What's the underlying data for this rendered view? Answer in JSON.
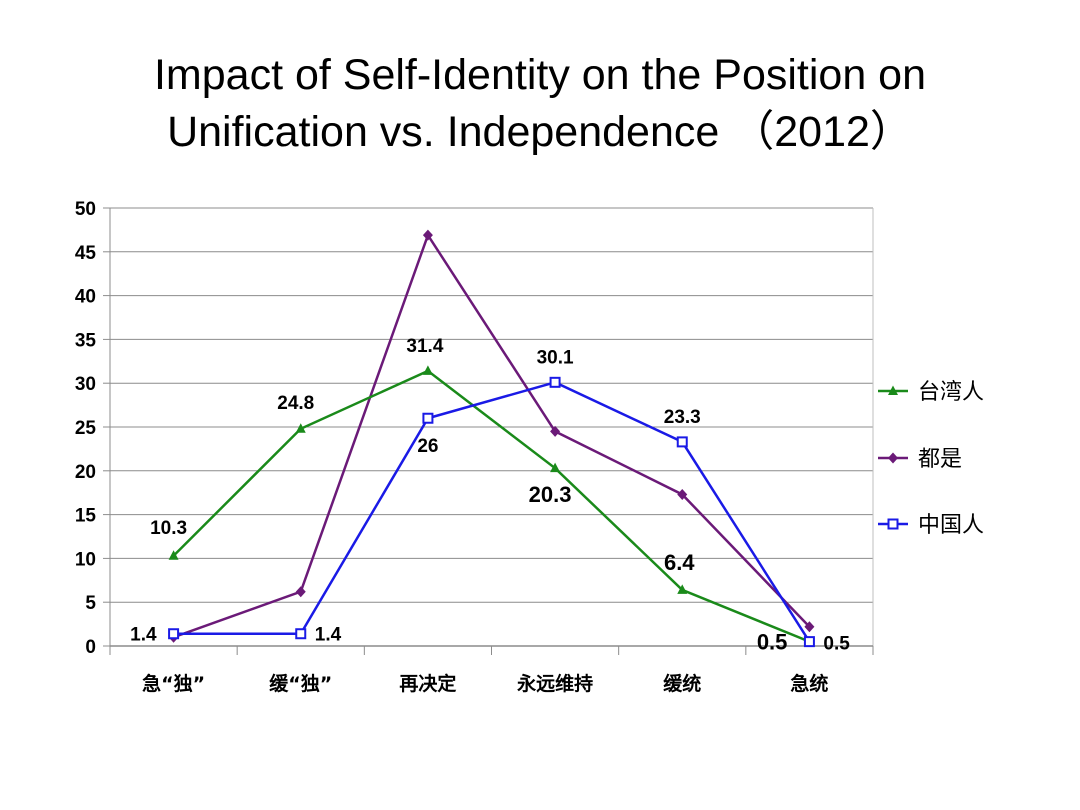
{
  "title_line1": "Impact of Self-Identity on the Position on",
  "title_line2": "Unification vs. Independence （2012）",
  "chart_data": {
    "type": "line",
    "title": "Impact of Self-Identity on the Position on Unification vs. Independence （2012）",
    "categories": [
      "急“独”",
      "缓“独”",
      "再决定",
      "永远维持",
      "缓统",
      "急统"
    ],
    "ylim": [
      0,
      50
    ],
    "yticks": [
      0,
      5,
      10,
      15,
      20,
      25,
      30,
      35,
      40,
      45,
      50
    ],
    "grid": true,
    "legend_position": "right",
    "series": [
      {
        "name": "台湾人",
        "color": "#1a8a1a",
        "marker": "triangle",
        "values": [
          10.3,
          24.8,
          31.4,
          20.3,
          6.4,
          0.5
        ],
        "labels": [
          "10.3",
          "24.8",
          "31.4",
          "20.3",
          "6.4",
          "0.5"
        ]
      },
      {
        "name": "都是",
        "color": "#6b1a78",
        "marker": "diamond",
        "values": [
          1,
          6.2,
          46.9,
          24.5,
          17.3,
          2.2
        ],
        "labels": [
          "",
          "",
          "",
          "",
          "",
          ""
        ]
      },
      {
        "name": "中国人",
        "color": "#1a1ae6",
        "marker": "square",
        "values": [
          1.4,
          1.4,
          26,
          30.1,
          23.3,
          0.5
        ],
        "labels": [
          "1.4",
          "1.4",
          "26",
          "30.1",
          "23.3",
          "0.5"
        ]
      }
    ]
  }
}
